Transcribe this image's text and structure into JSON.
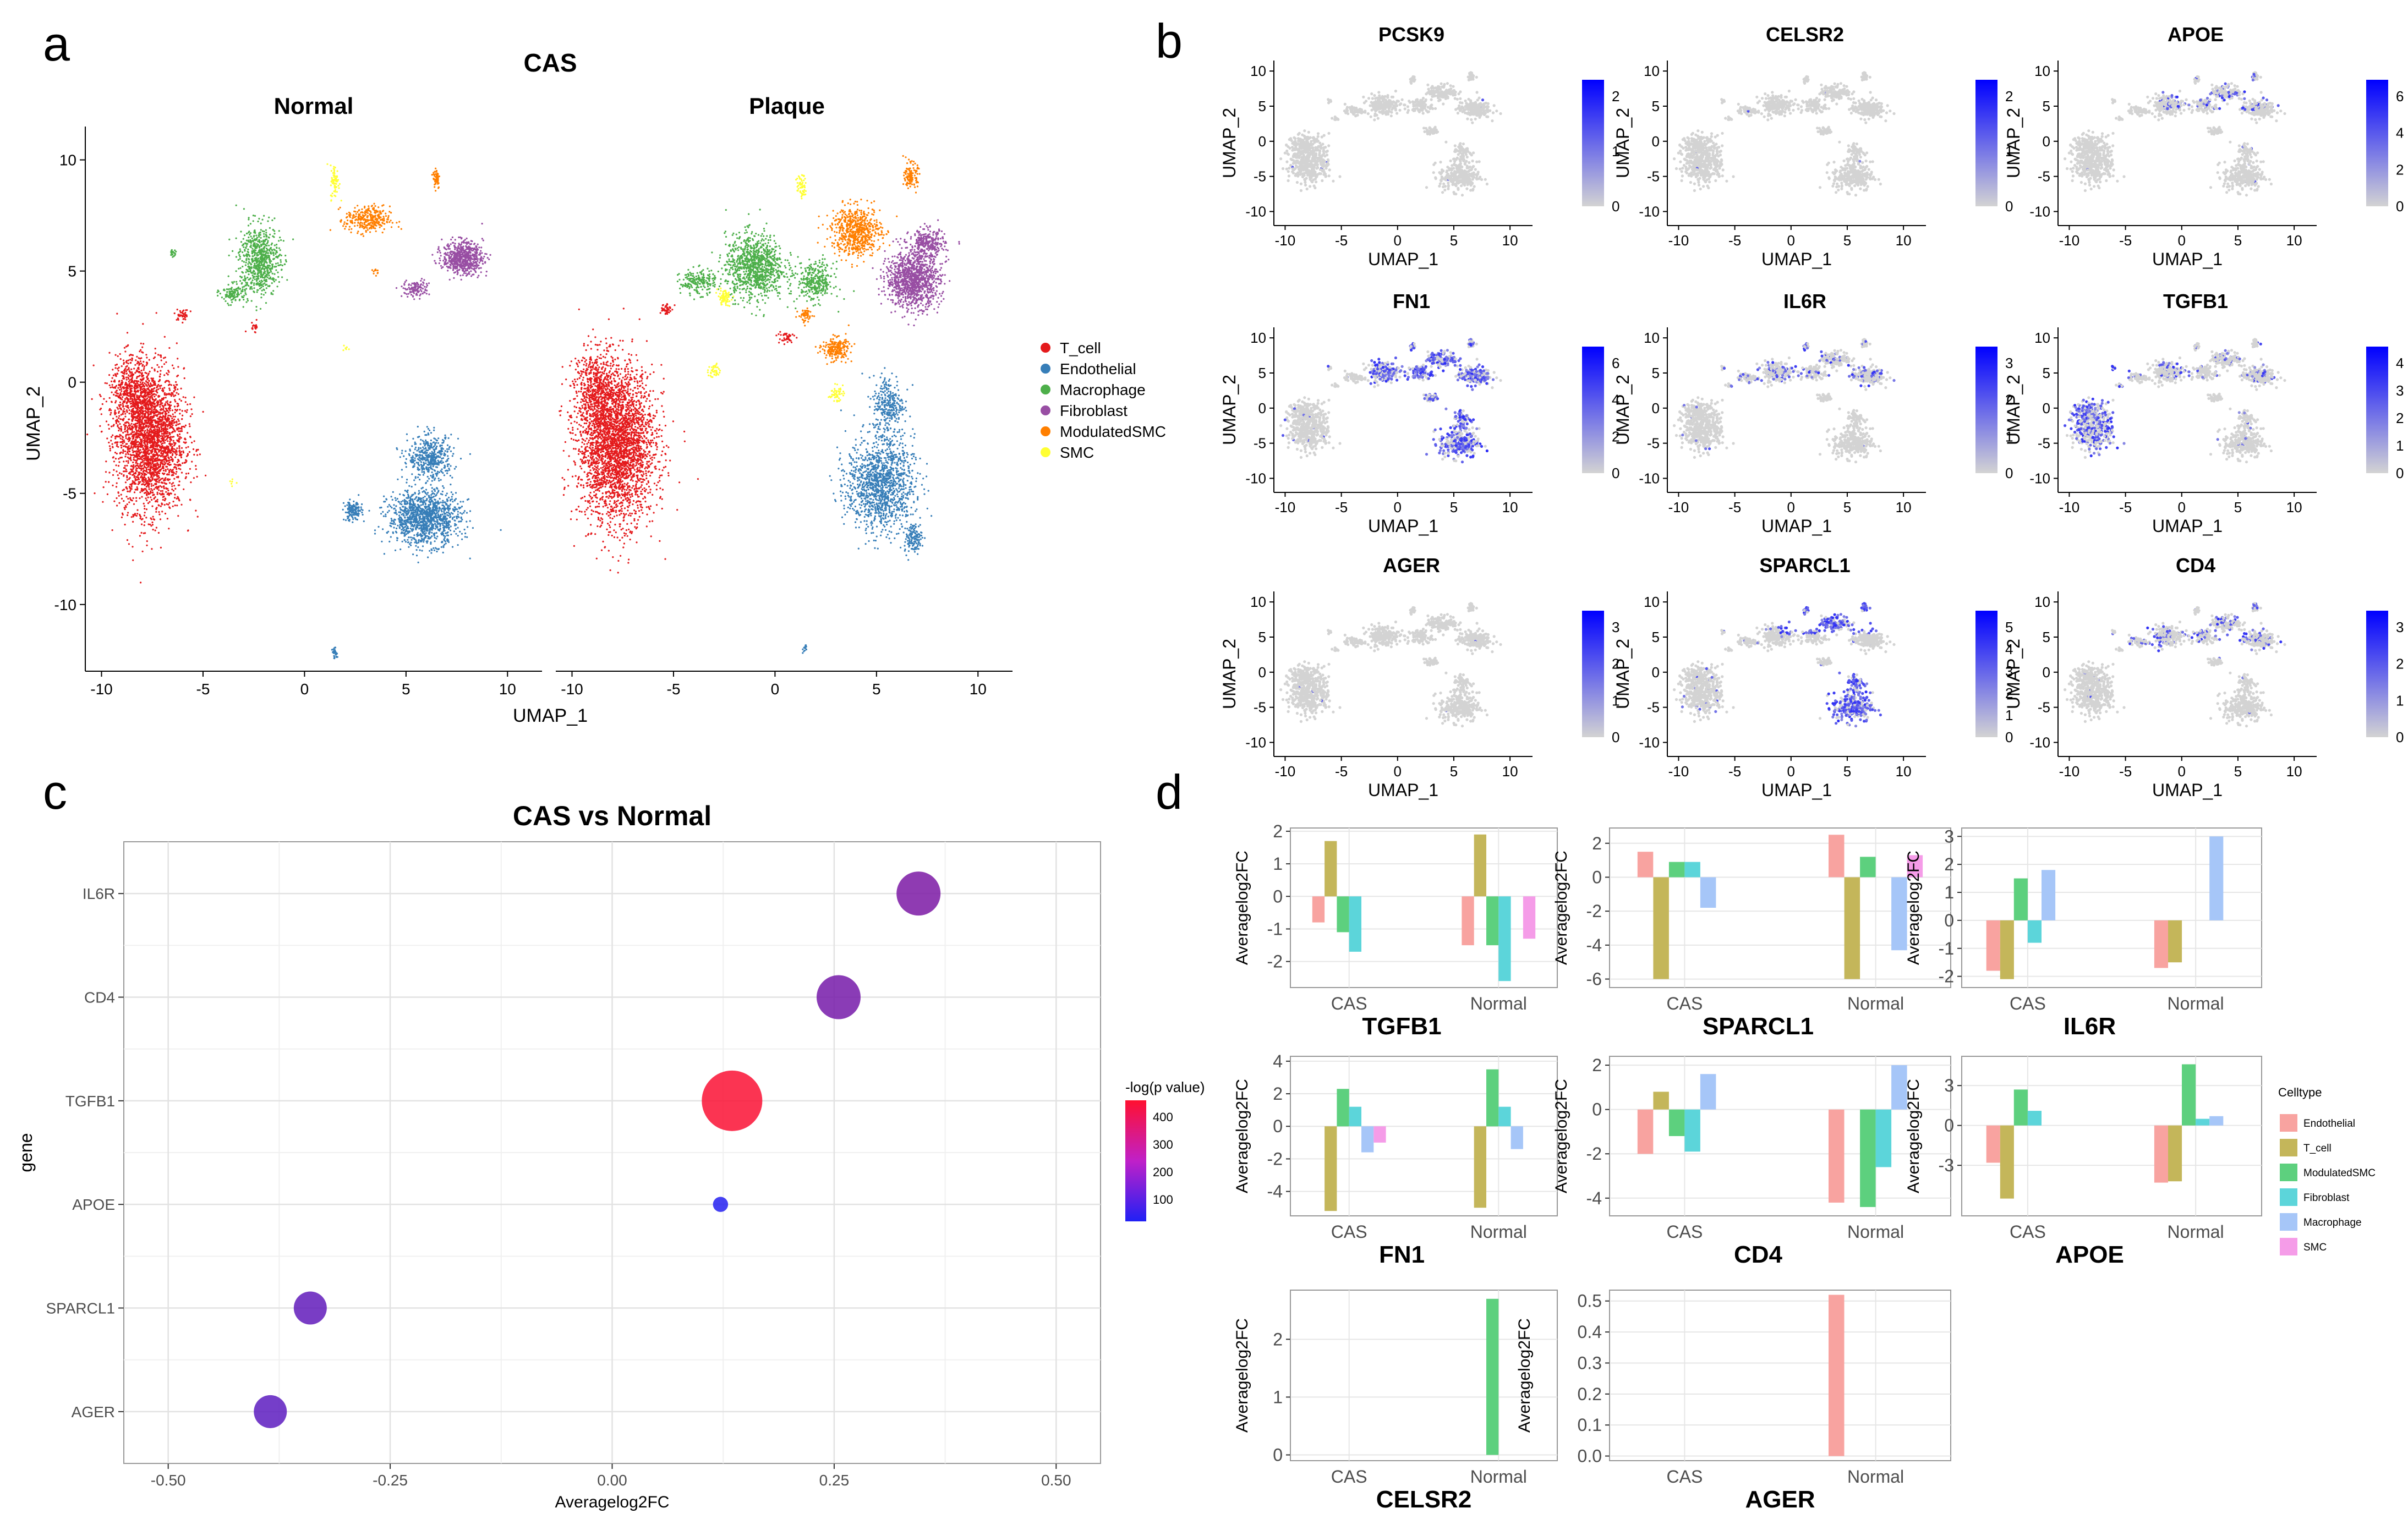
{
  "panels": {
    "a": {
      "letter": "a",
      "title": "CAS",
      "subplots": [
        "Normal",
        "Plaque"
      ],
      "xlabel": "UMAP_1",
      "ylabel": "UMAP_2",
      "x_ticks": [
        -10,
        -5,
        0,
        5,
        10
      ],
      "y_ticks": [
        10,
        5,
        0,
        -5,
        -10
      ],
      "legend": [
        {
          "label": "T_cell",
          "color": "#E41A1C"
        },
        {
          "label": "Endothelial",
          "color": "#377EB8"
        },
        {
          "label": "Macrophage",
          "color": "#4DAF4A"
        },
        {
          "label": "Fibroblast",
          "color": "#984EA3"
        },
        {
          "label": "ModulatedSMC",
          "color": "#FF7F00"
        },
        {
          "label": "SMC",
          "color": "#FFFF33"
        }
      ]
    },
    "b": {
      "letter": "b",
      "xlabel": "UMAP_1",
      "ylabel": "UMAP_2",
      "x_ticks": [
        -10,
        -5,
        0,
        5,
        10
      ],
      "y_ticks": [
        10,
        5,
        0,
        -5,
        -10
      ],
      "low_color": "#D3D3D3",
      "high_color": "#0000FF",
      "genes": [
        {
          "name": "PCSK9",
          "scale": [
            "2",
            "1",
            "0"
          ],
          "intensity": 0.05,
          "hot": "none"
        },
        {
          "name": "CELSR2",
          "scale": [
            "2",
            "1",
            "0"
          ],
          "intensity": 0.04,
          "hot": "none"
        },
        {
          "name": "APOE",
          "scale": [
            "6",
            "4",
            "2",
            "0"
          ],
          "intensity": 0.25,
          "hot": "top"
        },
        {
          "name": "FN1",
          "scale": [
            "6",
            "4",
            "2",
            "0"
          ],
          "intensity": 0.6,
          "hot": "right"
        },
        {
          "name": "IL6R",
          "scale": [
            "3",
            "2",
            "1",
            "0"
          ],
          "intensity": 0.2,
          "hot": "spread"
        },
        {
          "name": "TGFB1",
          "scale": [
            "4",
            "3",
            "2",
            "1",
            "0"
          ],
          "intensity": 0.4,
          "hot": "left"
        },
        {
          "name": "AGER",
          "scale": [
            "3",
            "2",
            "1",
            "0"
          ],
          "intensity": 0.05,
          "hot": "none"
        },
        {
          "name": "SPARCL1",
          "scale": [
            "5",
            "4",
            "3",
            "2",
            "1",
            "0"
          ],
          "intensity": 0.75,
          "hot": "bottomright"
        },
        {
          "name": "CD4",
          "scale": [
            "3",
            "2",
            "1",
            "0"
          ],
          "intensity": 0.22,
          "hot": "spread"
        }
      ]
    },
    "c": {
      "letter": "c"
    },
    "d": {
      "letter": "d"
    }
  },
  "chart_data": [
    {
      "id": "c",
      "type": "scatter",
      "title": "CAS vs Normal",
      "xlabel": "Averagelog2FC",
      "ylabel": "gene",
      "xlim": [
        -0.55,
        0.55
      ],
      "x_ticks": [
        -0.5,
        -0.25,
        0.0,
        0.25,
        0.5
      ],
      "x_tick_labels": [
        "-0.50",
        "-0.25",
        "0.00",
        "0.25",
        "0.50"
      ],
      "categories": [
        "AGER",
        "SPARCL1",
        "APOE",
        "TGFB1",
        "CD4",
        "IL6R"
      ],
      "points": [
        {
          "gene": "IL6R",
          "x": 0.345,
          "neglogp": 200,
          "size": 1.6
        },
        {
          "gene": "CD4",
          "x": 0.255,
          "neglogp": 190,
          "size": 1.6
        },
        {
          "gene": "TGFB1",
          "x": 0.135,
          "neglogp": 450,
          "size": 2.2
        },
        {
          "gene": "APOE",
          "x": 0.122,
          "neglogp": 30,
          "size": 0.55
        },
        {
          "gene": "SPARCL1",
          "x": -0.34,
          "neglogp": 150,
          "size": 1.2
        },
        {
          "gene": "AGER",
          "x": -0.385,
          "neglogp": 140,
          "size": 1.2
        }
      ],
      "legend": {
        "title": "-log(p value)",
        "ticks": [
          400,
          300,
          200,
          100
        ],
        "range": [
          20,
          460
        ],
        "low_color": "#2020F5",
        "high_color": "#FF1030"
      }
    },
    {
      "id": "d",
      "type": "bar",
      "ylabel": "Averagelog2FC",
      "categories": [
        "CAS",
        "Normal"
      ],
      "legend_title": "Celltype",
      "series": [
        {
          "name": "Endothelial",
          "color": "#F8A3A0"
        },
        {
          "name": "T_cell",
          "color": "#C4B65A"
        },
        {
          "name": "ModulatedSMC",
          "color": "#5DD07E"
        },
        {
          "name": "Fibroblast",
          "color": "#5CD5DA"
        },
        {
          "name": "Macrophage",
          "color": "#A6C6F8"
        },
        {
          "name": "SMC",
          "color": "#F59CE8"
        }
      ],
      "charts": [
        {
          "gene": "TGFB1",
          "ylim": [
            -2.8,
            2.1
          ],
          "y_ticks": [
            2,
            1,
            0,
            -1,
            -2
          ],
          "values": {
            "CAS": [
              -0.8,
              1.7,
              -1.1,
              -1.7,
              null,
              null
            ],
            "Normal": [
              -1.5,
              1.9,
              -1.5,
              -2.6,
              null,
              -1.3
            ]
          }
        },
        {
          "gene": "SPARCL1",
          "ylim": [
            -6.5,
            2.9
          ],
          "y_ticks": [
            2,
            0,
            -2,
            -4,
            -6
          ],
          "values": {
            "CAS": [
              1.5,
              -6.0,
              0.9,
              0.9,
              -1.8,
              null
            ],
            "Normal": [
              2.5,
              -6.0,
              1.2,
              null,
              -4.3,
              1.3
            ]
          }
        },
        {
          "gene": "IL6R",
          "ylim": [
            -2.4,
            3.3
          ],
          "y_ticks": [
            3,
            2,
            1,
            0,
            -1,
            -2
          ],
          "values": {
            "CAS": [
              -1.8,
              -2.1,
              1.5,
              -0.8,
              1.8,
              null
            ],
            "Normal": [
              -1.7,
              -1.5,
              null,
              null,
              3.0,
              null
            ]
          }
        },
        {
          "gene": "FN1",
          "ylim": [
            -5.5,
            4.3
          ],
          "y_ticks": [
            4,
            2,
            0,
            -2,
            -4
          ],
          "values": {
            "CAS": [
              null,
              -5.2,
              2.3,
              1.2,
              -1.6,
              -1.0
            ],
            "Normal": [
              null,
              -5.0,
              3.5,
              1.2,
              -1.4,
              null
            ]
          }
        },
        {
          "gene": "CD4",
          "ylim": [
            -4.8,
            2.4
          ],
          "y_ticks": [
            2,
            0,
            -2,
            -4
          ],
          "values": {
            "CAS": [
              -2.0,
              0.8,
              -1.2,
              -1.9,
              1.6,
              null
            ],
            "Normal": [
              -4.2,
              null,
              -4.4,
              -2.6,
              2.0,
              null
            ]
          }
        },
        {
          "gene": "APOE",
          "ylim": [
            -6.8,
            5.2
          ],
          "y_ticks": [
            3,
            0,
            -3
          ],
          "values": {
            "CAS": [
              -2.8,
              -5.5,
              2.7,
              1.1,
              null,
              null
            ],
            "Normal": [
              -4.3,
              -4.2,
              4.6,
              0.5,
              0.7,
              null
            ]
          }
        },
        {
          "gene": "CELSR2",
          "ylim": [
            -0.1,
            2.85
          ],
          "y_ticks": [
            2,
            1,
            0
          ],
          "values": {
            "CAS": [
              null,
              null,
              null,
              null,
              null,
              null
            ],
            "Normal": [
              null,
              null,
              2.7,
              null,
              null,
              null
            ]
          }
        },
        {
          "gene": "AGER",
          "ylim": [
            -0.015,
            0.535
          ],
          "y_ticks": [
            0.5,
            0.4,
            0.3,
            0.2,
            0.1,
            0.0
          ],
          "y_tick_labels": [
            "0.5",
            "0.4",
            "0.3",
            "0.2",
            "0.1",
            "0.0"
          ],
          "values": {
            "CAS": [
              null,
              null,
              null,
              null,
              null,
              null
            ],
            "Normal": [
              0.52,
              null,
              null,
              null,
              null,
              null
            ]
          }
        }
      ]
    }
  ]
}
